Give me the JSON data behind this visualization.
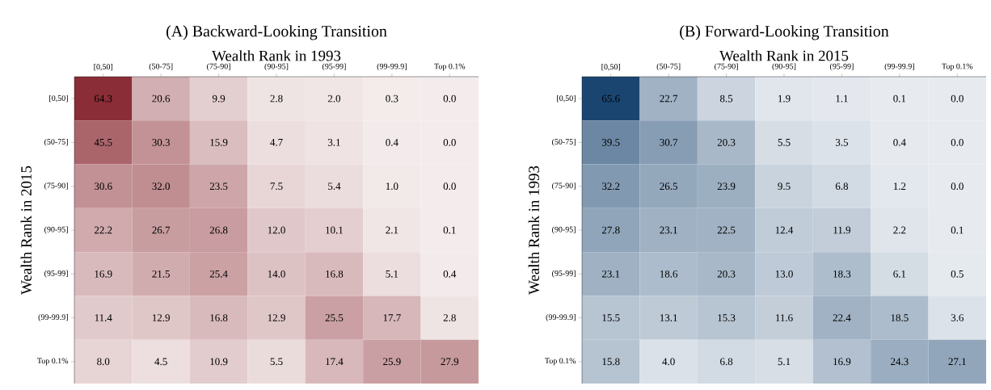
{
  "chart_data": [
    {
      "type": "heatmap",
      "title": "(A) Backward-Looking Transition",
      "xlabel": "Wealth Rank in 1993",
      "ylabel": "Wealth Rank in 2015",
      "color": "#8b2d36",
      "categories": [
        "[0,50]",
        "(50-75]",
        "(75-90]",
        "(90-95]",
        "(95-99]",
        "(99-99.9]",
        "Top 0.1%"
      ],
      "y_categories": [
        "[0,50]",
        "(50-75]",
        "(75-90]",
        "(90-95]",
        "(95-99]",
        "(99-99.9]",
        "Top 0.1%"
      ],
      "cells": [
        [
          64.3,
          20.6,
          9.9,
          2.8,
          2.0,
          0.3,
          0.0
        ],
        [
          45.5,
          30.3,
          15.9,
          4.7,
          3.1,
          0.4,
          0.0
        ],
        [
          30.6,
          32.0,
          23.5,
          7.5,
          5.4,
          1.0,
          0.0
        ],
        [
          22.2,
          26.7,
          26.8,
          12.0,
          10.1,
          2.1,
          0.1
        ],
        [
          16.9,
          21.5,
          25.4,
          14.0,
          16.8,
          5.1,
          0.4
        ],
        [
          11.4,
          12.9,
          16.8,
          12.9,
          25.5,
          17.7,
          2.8
        ],
        [
          8.0,
          4.5,
          10.9,
          5.5,
          17.4,
          25.9,
          27.9
        ]
      ],
      "cell_labels": [
        [
          "64.3",
          "20.6",
          "9.9",
          "2.8",
          "2.0",
          "0.3",
          "0.0"
        ],
        [
          "45.5",
          "30.3",
          "15.9",
          "4.7",
          "3.1",
          "0.4",
          "0.0"
        ],
        [
          "30.6",
          "32.0",
          "23.5",
          "7.5",
          "5.4",
          "1.0",
          "0.0"
        ],
        [
          "22.2",
          "26.7",
          "26.8",
          "12.0",
          "10.1",
          "2.1",
          "0.1"
        ],
        [
          "16.9",
          "21.5",
          "25.4",
          "14.0",
          "16.8",
          "5.1",
          "0.4"
        ],
        [
          "11.4",
          "12.9",
          "16.8",
          "12.9",
          "25.5",
          "17.7",
          "2.8"
        ],
        [
          "8.0",
          "4.5",
          "10.9",
          "5.5",
          "17.4",
          "25.9",
          "27.9"
        ]
      ]
    },
    {
      "type": "heatmap",
      "title": "(B) Forward-Looking Transition",
      "xlabel": "Wealth Rank in 2015",
      "ylabel": "Wealth Rank in 1993",
      "color": "#1a4570",
      "categories": [
        "[0,50]",
        "(50-75]",
        "(75-90]",
        "(90-95]",
        "(95-99]",
        "(99-99.9]",
        "Top 0.1%"
      ],
      "y_categories": [
        "[0,50]",
        "(50-75]",
        "(75-90]",
        "(90-95]",
        "(95-99]",
        "(99-99.9]",
        "Top 0.1%"
      ],
      "cells": [
        [
          65.6,
          22.7,
          8.5,
          1.9,
          1.1,
          0.1,
          0.0
        ],
        [
          39.5,
          30.7,
          20.3,
          5.5,
          3.5,
          0.4,
          0.0
        ],
        [
          32.2,
          26.5,
          23.9,
          9.5,
          6.8,
          1.2,
          0.0
        ],
        [
          27.8,
          23.1,
          22.5,
          12.4,
          11.9,
          2.2,
          0.1
        ],
        [
          23.1,
          18.6,
          20.3,
          13.0,
          18.3,
          6.1,
          0.5
        ],
        [
          15.5,
          13.1,
          15.3,
          11.6,
          22.4,
          18.5,
          3.6
        ],
        [
          15.8,
          4.0,
          6.8,
          5.1,
          16.9,
          24.3,
          27.1
        ]
      ],
      "cell_labels": [
        [
          "65.6",
          "22.7",
          "8.5",
          "1.9",
          "1.1",
          "0.1",
          "0.0"
        ],
        [
          "39.5",
          "30.7",
          "20.3",
          "5.5",
          "3.5",
          "0.4",
          "0.0"
        ],
        [
          "32.2",
          "26.5",
          "23.9",
          "9.5",
          "6.8",
          "1.2",
          "0.0"
        ],
        [
          "27.8",
          "23.1",
          "22.5",
          "12.4",
          "11.9",
          "2.2",
          "0.1"
        ],
        [
          "23.1",
          "18.6",
          "20.3",
          "13.0",
          "18.3",
          "6.1",
          "0.5"
        ],
        [
          "15.5",
          "13.1",
          "15.3",
          "11.6",
          "22.4",
          "18.5",
          "3.6"
        ],
        [
          "15.8",
          "4.0",
          "6.8",
          "5.1",
          "16.9",
          "24.3",
          "27.1"
        ]
      ]
    }
  ]
}
